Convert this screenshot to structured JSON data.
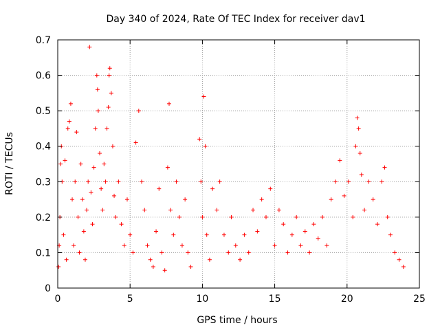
{
  "chart_data": {
    "type": "scatter",
    "title": "Day 340 of 2024, Rate Of TEC Index for receiver dav1",
    "xlabel": "GPS time / hours",
    "ylabel": "ROTI / TECUs",
    "xlim": [
      0,
      25
    ],
    "ylim": [
      0,
      0.7
    ],
    "xticks": [
      "0",
      "5",
      "10",
      "15",
      "20",
      "25"
    ],
    "yticks": [
      "0",
      "0.1",
      "0.2",
      "0.3",
      "0.4",
      "0.5",
      "0.6",
      "0.7"
    ],
    "grid": true,
    "marker": "+",
    "color": "#ff0000",
    "series": [
      {
        "points": [
          [
            0.05,
            0.06
          ],
          [
            0.1,
            0.12
          ],
          [
            0.15,
            0.2
          ],
          [
            0.2,
            0.35
          ],
          [
            0.25,
            0.4
          ],
          [
            0.3,
            0.3
          ],
          [
            0.4,
            0.15
          ],
          [
            0.5,
            0.36
          ],
          [
            0.6,
            0.08
          ],
          [
            0.7,
            0.45
          ],
          [
            0.8,
            0.47
          ],
          [
            0.9,
            0.52
          ],
          [
            1.0,
            0.25
          ],
          [
            1.1,
            0.12
          ],
          [
            1.2,
            0.3
          ],
          [
            1.3,
            0.44
          ],
          [
            1.4,
            0.2
          ],
          [
            1.5,
            0.1
          ],
          [
            1.6,
            0.35
          ],
          [
            1.7,
            0.25
          ],
          [
            1.8,
            0.16
          ],
          [
            1.9,
            0.08
          ],
          [
            2.0,
            0.22
          ],
          [
            2.1,
            0.3
          ],
          [
            2.2,
            0.68
          ],
          [
            2.3,
            0.27
          ],
          [
            2.4,
            0.18
          ],
          [
            2.5,
            0.34
          ],
          [
            2.6,
            0.45
          ],
          [
            2.7,
            0.6
          ],
          [
            2.75,
            0.56
          ],
          [
            2.8,
            0.5
          ],
          [
            2.9,
            0.38
          ],
          [
            3.0,
            0.28
          ],
          [
            3.1,
            0.22
          ],
          [
            3.2,
            0.35
          ],
          [
            3.3,
            0.3
          ],
          [
            3.4,
            0.45
          ],
          [
            3.5,
            0.51
          ],
          [
            3.55,
            0.6
          ],
          [
            3.6,
            0.62
          ],
          [
            3.7,
            0.55
          ],
          [
            3.8,
            0.4
          ],
          [
            3.9,
            0.26
          ],
          [
            4.0,
            0.2
          ],
          [
            4.2,
            0.3
          ],
          [
            4.4,
            0.18
          ],
          [
            4.6,
            0.12
          ],
          [
            4.8,
            0.25
          ],
          [
            5.0,
            0.15
          ],
          [
            5.2,
            0.1
          ],
          [
            5.4,
            0.41
          ],
          [
            5.6,
            0.5
          ],
          [
            5.8,
            0.3
          ],
          [
            6.0,
            0.22
          ],
          [
            6.2,
            0.12
          ],
          [
            6.4,
            0.08
          ],
          [
            6.6,
            0.06
          ],
          [
            6.8,
            0.16
          ],
          [
            7.0,
            0.28
          ],
          [
            7.2,
            0.1
          ],
          [
            7.4,
            0.05
          ],
          [
            7.6,
            0.34
          ],
          [
            7.7,
            0.52
          ],
          [
            7.8,
            0.22
          ],
          [
            8.0,
            0.15
          ],
          [
            8.2,
            0.3
          ],
          [
            8.4,
            0.2
          ],
          [
            8.6,
            0.12
          ],
          [
            8.8,
            0.25
          ],
          [
            9.0,
            0.1
          ],
          [
            9.2,
            0.06
          ],
          [
            9.8,
            0.42
          ],
          [
            9.9,
            0.3
          ],
          [
            10.0,
            0.2
          ],
          [
            10.1,
            0.54
          ],
          [
            10.2,
            0.4
          ],
          [
            10.3,
            0.15
          ],
          [
            10.5,
            0.08
          ],
          [
            10.7,
            0.28
          ],
          [
            11.0,
            0.22
          ],
          [
            11.2,
            0.3
          ],
          [
            11.5,
            0.15
          ],
          [
            11.8,
            0.1
          ],
          [
            12.0,
            0.2
          ],
          [
            12.3,
            0.12
          ],
          [
            12.6,
            0.08
          ],
          [
            12.9,
            0.15
          ],
          [
            13.2,
            0.1
          ],
          [
            13.5,
            0.22
          ],
          [
            13.8,
            0.16
          ],
          [
            14.1,
            0.25
          ],
          [
            14.4,
            0.2
          ],
          [
            14.7,
            0.28
          ],
          [
            15.0,
            0.12
          ],
          [
            15.3,
            0.22
          ],
          [
            15.6,
            0.18
          ],
          [
            15.9,
            0.1
          ],
          [
            16.2,
            0.15
          ],
          [
            16.5,
            0.2
          ],
          [
            16.8,
            0.12
          ],
          [
            17.1,
            0.16
          ],
          [
            17.4,
            0.1
          ],
          [
            17.7,
            0.18
          ],
          [
            18.0,
            0.14
          ],
          [
            18.3,
            0.2
          ],
          [
            18.6,
            0.12
          ],
          [
            18.9,
            0.25
          ],
          [
            19.2,
            0.3
          ],
          [
            19.5,
            0.36
          ],
          [
            19.8,
            0.26
          ],
          [
            20.1,
            0.3
          ],
          [
            20.4,
            0.2
          ],
          [
            20.6,
            0.4
          ],
          [
            20.7,
            0.48
          ],
          [
            20.8,
            0.45
          ],
          [
            20.9,
            0.38
          ],
          [
            21.0,
            0.32
          ],
          [
            21.2,
            0.22
          ],
          [
            21.5,
            0.3
          ],
          [
            21.8,
            0.25
          ],
          [
            22.1,
            0.18
          ],
          [
            22.4,
            0.3
          ],
          [
            22.6,
            0.34
          ],
          [
            22.8,
            0.2
          ],
          [
            23.0,
            0.15
          ],
          [
            23.3,
            0.1
          ],
          [
            23.6,
            0.08
          ],
          [
            23.9,
            0.06
          ]
        ]
      }
    ]
  }
}
